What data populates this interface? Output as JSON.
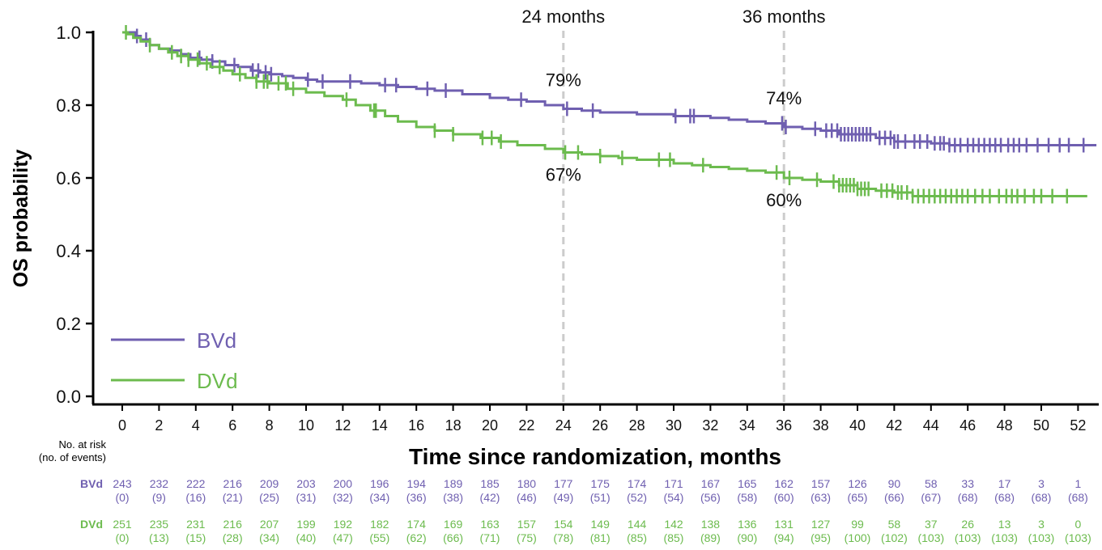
{
  "colors": {
    "bvd": "#6f5fb0",
    "dvd": "#6cbb4e",
    "axis": "#000000",
    "refline": "#cccccc",
    "text": "#111111"
  },
  "chart_data": {
    "type": "line",
    "subtype": "kaplan-meier",
    "title": "",
    "xlabel": "Time since randomization, months",
    "ylabel": "OS probability",
    "xlim": [
      0,
      52
    ],
    "ylim": [
      0,
      1
    ],
    "xticks": [
      0,
      2,
      4,
      6,
      8,
      10,
      12,
      14,
      16,
      18,
      20,
      22,
      24,
      26,
      28,
      30,
      32,
      34,
      36,
      38,
      40,
      42,
      44,
      46,
      48,
      50,
      52
    ],
    "yticks": [
      "0.0",
      "0.2",
      "0.4",
      "0.6",
      "0.8",
      "1.0"
    ],
    "grid": false,
    "legend_position": "bottom-left",
    "reference_lines": [
      {
        "x": 24,
        "label": "24 months"
      },
      {
        "x": 36,
        "label": "36 months"
      }
    ],
    "annotations": [
      {
        "series": "BVd",
        "x": 24,
        "y": 0.79,
        "label": "79%"
      },
      {
        "series": "BVd",
        "x": 36,
        "y": 0.74,
        "label": "74%"
      },
      {
        "series": "DVd",
        "x": 24,
        "y": 0.67,
        "label": "67%"
      },
      {
        "series": "DVd",
        "x": 36,
        "y": 0.6,
        "label": "60%"
      }
    ],
    "series": [
      {
        "name": "BVd",
        "color": "#6f5fb0",
        "x": [
          0,
          0.7,
          1.0,
          1.5,
          2.0,
          2.6,
          3.2,
          3.7,
          4.3,
          4.9,
          5.6,
          6.3,
          7.0,
          7.5,
          8.0,
          8.7,
          9.3,
          10.0,
          10.6,
          11.3,
          12.0,
          13.0,
          14.0,
          15.0,
          16.0,
          17.0,
          18.5,
          20.0,
          21.0,
          22.0,
          23.0,
          24.0,
          25.0,
          26.0,
          28.0,
          30.0,
          32.0,
          33.0,
          34.0,
          35.0,
          36.0,
          37.0,
          38.0,
          39.0,
          41.0,
          42.0,
          44.0,
          45.0,
          53.0
        ],
        "y": [
          1.0,
          0.99,
          0.98,
          0.965,
          0.955,
          0.95,
          0.94,
          0.93,
          0.925,
          0.92,
          0.91,
          0.905,
          0.895,
          0.89,
          0.885,
          0.88,
          0.875,
          0.87,
          0.865,
          0.865,
          0.865,
          0.86,
          0.855,
          0.85,
          0.845,
          0.84,
          0.83,
          0.82,
          0.815,
          0.81,
          0.8,
          0.79,
          0.785,
          0.78,
          0.775,
          0.77,
          0.765,
          0.76,
          0.755,
          0.75,
          0.74,
          0.735,
          0.73,
          0.72,
          0.71,
          0.7,
          0.695,
          0.69,
          0.69
        ],
        "censor_x": [
          0.8,
          1.3,
          4.2,
          4.9,
          6.1,
          7.1,
          7.4,
          7.8,
          8.1,
          10.1,
          10.9,
          12.4,
          14.3,
          14.9,
          16.6,
          17.6,
          21.7,
          24.2,
          25.6,
          30.1,
          30.9,
          31.1,
          35.9,
          36.1,
          37.7,
          38.3,
          38.6,
          38.9,
          39.1,
          39.3,
          39.5,
          39.7,
          39.9,
          40.1,
          40.3,
          40.5,
          40.7,
          41.2,
          41.5,
          41.8,
          42.0,
          42.2,
          42.6,
          43.1,
          43.4,
          43.8,
          44.2,
          44.5,
          44.7,
          45.0,
          45.3,
          45.6,
          46.0,
          46.3,
          46.6,
          46.9,
          47.2,
          47.5,
          47.8,
          48.2,
          48.5,
          48.8,
          49.2,
          49.8,
          50.4,
          51.0,
          51.5,
          52.3
        ]
      },
      {
        "name": "DVd",
        "color": "#6cbb4e",
        "x": [
          0,
          0.3,
          0.6,
          1.0,
          1.5,
          2.0,
          2.5,
          3.0,
          3.6,
          4.2,
          4.8,
          5.5,
          6.0,
          6.7,
          7.3,
          8.0,
          9.0,
          10.0,
          11.0,
          12.0,
          12.7,
          13.5,
          14.3,
          15.0,
          16.0,
          17.0,
          18.0,
          19.5,
          20.5,
          21.5,
          23.0,
          24.0,
          25.0,
          26.0,
          27.0,
          28.0,
          30.0,
          31.0,
          32.0,
          33.0,
          34.0,
          35.0,
          36.0,
          37.0,
          38.0,
          39.0,
          40.0,
          41.0,
          42.0,
          43.0,
          52.5
        ],
        "y": [
          1.0,
          0.995,
          0.985,
          0.975,
          0.965,
          0.955,
          0.945,
          0.935,
          0.925,
          0.915,
          0.905,
          0.895,
          0.885,
          0.875,
          0.865,
          0.86,
          0.845,
          0.835,
          0.825,
          0.815,
          0.8,
          0.785,
          0.77,
          0.755,
          0.74,
          0.73,
          0.72,
          0.71,
          0.7,
          0.69,
          0.68,
          0.67,
          0.665,
          0.66,
          0.655,
          0.65,
          0.64,
          0.635,
          0.63,
          0.625,
          0.62,
          0.615,
          0.6,
          0.595,
          0.59,
          0.58,
          0.57,
          0.565,
          0.56,
          0.55,
          0.55
        ],
        "censor_x": [
          0.2,
          1.5,
          2.7,
          3.2,
          3.6,
          4.1,
          4.6,
          5.3,
          6.4,
          7.3,
          7.7,
          7.9,
          8.5,
          8.9,
          9.3,
          12.2,
          13.7,
          13.8,
          17.0,
          18.0,
          19.6,
          20.1,
          20.6,
          24.1,
          24.8,
          26.0,
          27.2,
          29.2,
          29.8,
          31.6,
          35.6,
          36.3,
          37.8,
          38.7,
          39.0,
          39.2,
          39.4,
          39.6,
          39.8,
          40.0,
          40.2,
          40.4,
          40.6,
          41.3,
          41.6,
          41.9,
          42.2,
          42.4,
          42.7,
          43.0,
          43.3,
          43.6,
          43.9,
          44.2,
          44.5,
          44.8,
          45.1,
          45.4,
          45.7,
          46.0,
          46.4,
          46.8,
          47.2,
          47.7,
          48.1,
          48.4,
          48.7,
          49.1,
          49.6,
          50.0,
          50.6,
          51.4
        ]
      }
    ]
  },
  "legend": [
    {
      "label": "BVd",
      "color": "#6f5fb0"
    },
    {
      "label": "DVd",
      "color": "#6cbb4e"
    }
  ],
  "risk_table": {
    "header_line1": "No. at risk",
    "header_line2": "(no. of events)",
    "rows": [
      {
        "label": "BVd",
        "color": "#6f5fb0",
        "at_risk": [
          "243",
          "232",
          "222",
          "216",
          "209",
          "203",
          "200",
          "196",
          "194",
          "189",
          "185",
          "180",
          "177",
          "175",
          "174",
          "171",
          "167",
          "165",
          "162",
          "157",
          "126",
          "90",
          "58",
          "33",
          "17",
          "3",
          "1"
        ],
        "events": [
          "(0)",
          "(9)",
          "(16)",
          "(21)",
          "(25)",
          "(31)",
          "(32)",
          "(34)",
          "(36)",
          "(38)",
          "(42)",
          "(46)",
          "(49)",
          "(51)",
          "(52)",
          "(54)",
          "(56)",
          "(58)",
          "(60)",
          "(63)",
          "(65)",
          "(66)",
          "(67)",
          "(68)",
          "(68)",
          "(68)",
          "(68)"
        ]
      },
      {
        "label": "DVd",
        "color": "#6cbb4e",
        "at_risk": [
          "251",
          "235",
          "231",
          "216",
          "207",
          "199",
          "192",
          "182",
          "174",
          "169",
          "163",
          "157",
          "154",
          "149",
          "144",
          "142",
          "138",
          "136",
          "131",
          "127",
          "99",
          "58",
          "37",
          "26",
          "13",
          "3",
          "0"
        ],
        "events": [
          "(0)",
          "(13)",
          "(15)",
          "(28)",
          "(34)",
          "(40)",
          "(47)",
          "(55)",
          "(62)",
          "(66)",
          "(71)",
          "(75)",
          "(78)",
          "(81)",
          "(85)",
          "(85)",
          "(89)",
          "(90)",
          "(94)",
          "(95)",
          "(100)",
          "(102)",
          "(103)",
          "(103)",
          "(103)",
          "(103)",
          "(103)"
        ]
      }
    ]
  }
}
